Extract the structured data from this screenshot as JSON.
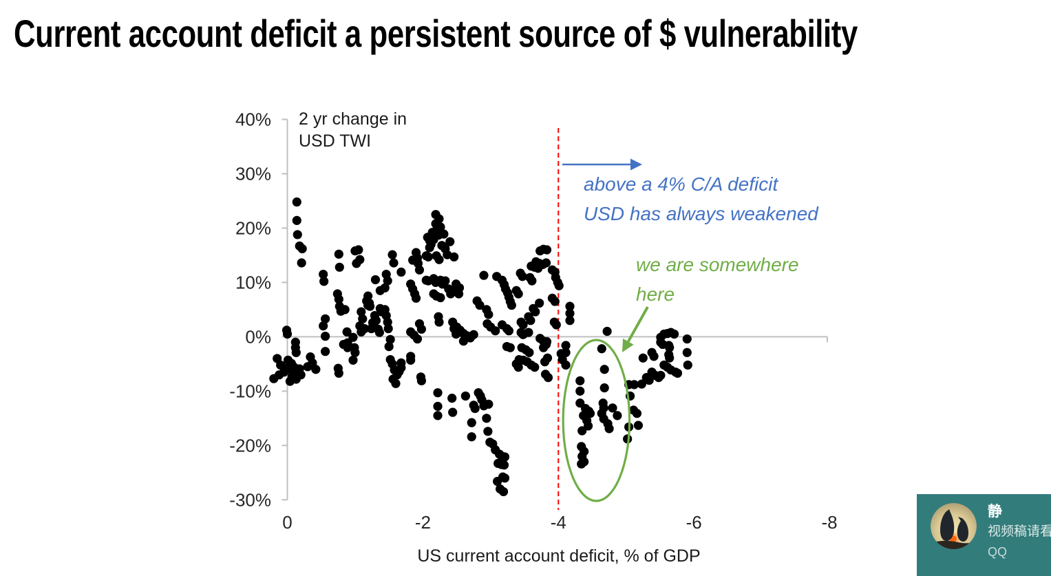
{
  "title": "Current account deficit a persistent source of $ vulnerability",
  "chart_data": {
    "type": "scatter",
    "xlabel": "US current account deficit, % of GDP",
    "ylabel_note": {
      "line1": "2 yr change in",
      "line2": "USD TWI"
    },
    "xlim": [
      0,
      -8
    ],
    "ylim": [
      40,
      -30
    ],
    "x_ticks": [
      {
        "value": 0,
        "label": "0"
      },
      {
        "value": -2,
        "label": "-2"
      },
      {
        "value": -4,
        "label": "-4"
      },
      {
        "value": -6,
        "label": "-6"
      },
      {
        "value": -8,
        "label": "-8"
      }
    ],
    "y_ticks": [
      {
        "value": 40,
        "label": "40%"
      },
      {
        "value": 30,
        "label": "30%"
      },
      {
        "value": 20,
        "label": "20%"
      },
      {
        "value": 10,
        "label": "10%"
      },
      {
        "value": 0,
        "label": "0%"
      },
      {
        "value": -10,
        "label": "-10%"
      },
      {
        "value": -20,
        "label": "-20%"
      },
      {
        "value": -30,
        "label": "-30%"
      }
    ],
    "axis_color": "#bfbfbf",
    "tick_label_color": "#262626",
    "marker_color": "#000000",
    "marker_radius": 6.6,
    "reference_line": {
      "x": -4,
      "color": "#fb1414",
      "style": "dashed"
    },
    "highlight_ellipse": {
      "cx": -4.56,
      "cy": -15.4,
      "rx_units": 0.49,
      "ry_pct": 14.8,
      "color": "#70ad47"
    },
    "annotations": {
      "blue": {
        "line1": "above a 4% C/A deficit",
        "line2": "USD has always weakened",
        "color": "#4472c4"
      },
      "green": {
        "line1": "we are somewhere",
        "line2": "here",
        "color": "#70ad47"
      }
    },
    "points": [
      [
        0.2,
        -7.7
      ],
      [
        0.15,
        -4.0
      ],
      [
        0.1,
        -5.2
      ],
      [
        0.05,
        -6.5
      ],
      [
        0.12,
        -7.0
      ],
      [
        0.02,
        -5.8
      ],
      [
        0.0,
        0.5
      ],
      [
        0.01,
        1.2
      ],
      [
        -0.14,
        24.8
      ],
      [
        -0.14,
        21.4
      ],
      [
        -0.15,
        18.8
      ],
      [
        -0.18,
        16.7
      ],
      [
        -0.22,
        16.2
      ],
      [
        -0.21,
        13.6
      ],
      [
        -0.12,
        -1.0
      ],
      [
        -0.12,
        -2.0
      ],
      [
        -0.13,
        -2.9
      ],
      [
        -0.01,
        -4.3
      ],
      [
        -0.06,
        -4.9
      ],
      [
        -0.1,
        -5.6
      ],
      [
        -0.16,
        -6.2
      ],
      [
        -0.08,
        -6.5
      ],
      [
        -0.18,
        -5.9
      ],
      [
        -0.07,
        -7.3
      ],
      [
        -0.13,
        -7.8
      ],
      [
        -0.04,
        -8.2
      ],
      [
        -0.2,
        -7.0
      ],
      [
        -0.34,
        -3.7
      ],
      [
        -0.37,
        -4.8
      ],
      [
        -0.42,
        -6.0
      ],
      [
        -0.3,
        -5.5
      ],
      [
        -0.56,
        0.1
      ],
      [
        -0.56,
        -2.7
      ],
      [
        -0.56,
        3.3
      ],
      [
        -0.53,
        2.0
      ],
      [
        -0.75,
        -5.8
      ],
      [
        -0.76,
        -6.7
      ],
      [
        -0.53,
        11.5
      ],
      [
        -0.54,
        10.2
      ],
      [
        -0.76,
        15.2
      ],
      [
        -0.77,
        12.8
      ],
      [
        -0.74,
        7.9
      ],
      [
        -0.76,
        6.9
      ],
      [
        -0.77,
        5.6
      ],
      [
        -0.79,
        4.7
      ],
      [
        -0.85,
        5.0
      ],
      [
        -0.83,
        -1.4
      ],
      [
        -0.89,
        -2.0
      ],
      [
        -1.0,
        15.8
      ],
      [
        -1.02,
        13.5
      ],
      [
        -1.05,
        16.0
      ],
      [
        -1.07,
        14.2
      ],
      [
        -0.88,
        0.9
      ],
      [
        -0.89,
        -1.1
      ],
      [
        -0.97,
        -0.1
      ],
      [
        -0.99,
        -2.0
      ],
      [
        -1.0,
        -2.9
      ],
      [
        -0.97,
        -4.3
      ],
      [
        -1.09,
        4.6
      ],
      [
        -1.11,
        3.3
      ],
      [
        -1.07,
        2.0
      ],
      [
        -1.09,
        0.9
      ],
      [
        -1.19,
        7.5
      ],
      [
        -1.21,
        6.2
      ],
      [
        -1.22,
        5.6
      ],
      [
        -1.37,
        8.5
      ],
      [
        -1.17,
        6.6
      ],
      [
        -1.19,
        5.8
      ],
      [
        -1.14,
        1.5
      ],
      [
        -1.24,
        1.5
      ],
      [
        -1.26,
        2.6
      ],
      [
        -1.29,
        3.9
      ],
      [
        -1.31,
        3.0
      ],
      [
        -1.34,
        1.4
      ],
      [
        -1.36,
        0.8
      ],
      [
        -1.37,
        5.2
      ],
      [
        -1.39,
        4.6
      ],
      [
        -1.44,
        5.0
      ],
      [
        -1.46,
        3.9
      ],
      [
        -1.48,
        2.7
      ],
      [
        -1.49,
        1.5
      ],
      [
        -1.3,
        10.5
      ],
      [
        -1.44,
        9.0
      ],
      [
        -1.46,
        11.5
      ],
      [
        -1.48,
        10.3
      ],
      [
        -1.55,
        15.1
      ],
      [
        -1.57,
        13.6
      ],
      [
        -1.68,
        11.9
      ],
      [
        -1.52,
        -0.5
      ],
      [
        -1.5,
        -1.8
      ],
      [
        -1.52,
        -4.2
      ],
      [
        -1.55,
        -5.0
      ],
      [
        -1.58,
        -6.1
      ],
      [
        -1.62,
        -7.0
      ],
      [
        -1.56,
        -7.8
      ],
      [
        -1.6,
        -8.6
      ],
      [
        -1.65,
        -6.4
      ],
      [
        -1.68,
        -4.8
      ],
      [
        -1.68,
        -5.7
      ],
      [
        -1.82,
        -3.6
      ],
      [
        -1.82,
        -4.3
      ],
      [
        -1.97,
        -7.4
      ],
      [
        -1.98,
        -8.1
      ],
      [
        -1.82,
        9.7
      ],
      [
        -1.85,
        8.8
      ],
      [
        -1.88,
        7.9
      ],
      [
        -1.9,
        7.1
      ],
      [
        -1.85,
        14.1
      ],
      [
        -1.9,
        15.5
      ],
      [
        -1.92,
        14.5
      ],
      [
        -1.93,
        13.5
      ],
      [
        -1.95,
        12.3
      ],
      [
        -1.82,
        0.9
      ],
      [
        -1.87,
        0.3
      ],
      [
        -1.92,
        -0.4
      ],
      [
        -1.95,
        2.4
      ],
      [
        -1.98,
        1.4
      ],
      [
        -2.05,
        14.9
      ],
      [
        -2.08,
        14.7
      ],
      [
        -2.2,
        14.9
      ],
      [
        -2.24,
        14.2
      ],
      [
        -2.07,
        18.3
      ],
      [
        -2.1,
        17.7
      ],
      [
        -2.12,
        17.0
      ],
      [
        -2.16,
        17.9
      ],
      [
        -2.2,
        19.6
      ],
      [
        -2.23,
        18.7
      ],
      [
        -2.19,
        22.5
      ],
      [
        -2.24,
        21.7
      ],
      [
        -2.19,
        20.8
      ],
      [
        -2.26,
        20.2
      ],
      [
        -2.14,
        19.2
      ],
      [
        -2.31,
        18.9
      ],
      [
        -2.1,
        16.4
      ],
      [
        -2.28,
        16.8
      ],
      [
        -2.33,
        16.2
      ],
      [
        -2.05,
        10.4
      ],
      [
        -2.08,
        10.3
      ],
      [
        -2.16,
        10.7
      ],
      [
        -2.19,
        10.0
      ],
      [
        -2.26,
        10.4
      ],
      [
        -2.29,
        9.7
      ],
      [
        -2.33,
        10.3
      ],
      [
        -2.16,
        7.9
      ],
      [
        -2.2,
        7.5
      ],
      [
        -2.26,
        7.2
      ],
      [
        -2.38,
        8.8
      ],
      [
        -2.41,
        7.9
      ],
      [
        -2.46,
        8.4
      ],
      [
        -2.36,
        15.1
      ],
      [
        -2.46,
        14.7
      ],
      [
        -2.4,
        17.5
      ],
      [
        -2.49,
        9.7
      ],
      [
        -2.54,
        9.0
      ],
      [
        -2.53,
        7.9
      ],
      [
        -2.44,
        2.7
      ],
      [
        -2.46,
        1.5
      ],
      [
        -2.49,
        0.5
      ],
      [
        -2.23,
        3.7
      ],
      [
        -2.24,
        2.7
      ],
      [
        -2.5,
        1.8
      ],
      [
        -2.55,
        1.2
      ],
      [
        -2.6,
        0.6
      ],
      [
        -2.65,
        0.2
      ],
      [
        -2.7,
        -0.2
      ],
      [
        -2.75,
        0.4
      ],
      [
        -2.6,
        -0.8
      ],
      [
        -2.8,
        6.6
      ],
      [
        -2.84,
        5.8
      ],
      [
        -2.94,
        5.0
      ],
      [
        -2.97,
        4.1
      ],
      [
        -2.9,
        11.3
      ],
      [
        -3.09,
        11.1
      ],
      [
        -2.95,
        2.4
      ],
      [
        -3.0,
        1.8
      ],
      [
        -3.07,
        1.1
      ],
      [
        -3.17,
        2.2
      ],
      [
        -3.24,
        1.5
      ],
      [
        -3.27,
        1.1
      ],
      [
        -3.17,
        10.4
      ],
      [
        -3.2,
        9.6
      ],
      [
        -3.22,
        8.8
      ],
      [
        -3.25,
        8.1
      ],
      [
        -3.27,
        7.3
      ],
      [
        -3.29,
        6.5
      ],
      [
        -3.31,
        5.8
      ],
      [
        -3.38,
        8.5
      ],
      [
        -3.41,
        7.9
      ],
      [
        -3.44,
        11.7
      ],
      [
        -3.47,
        11.1
      ],
      [
        -3.58,
        10.9
      ],
      [
        -3.61,
        10.3
      ],
      [
        -3.6,
        13.0
      ],
      [
        -3.65,
        12.8
      ],
      [
        -3.7,
        12.6
      ],
      [
        -3.73,
        15.8
      ],
      [
        -3.78,
        16.1
      ],
      [
        -3.83,
        16.0
      ],
      [
        -3.67,
        13.8
      ],
      [
        -3.72,
        13.5
      ],
      [
        -3.77,
        13.3
      ],
      [
        -3.82,
        13.6
      ],
      [
        -3.91,
        12.3
      ],
      [
        -3.95,
        11.9
      ],
      [
        -3.96,
        10.9
      ],
      [
        -3.99,
        10.0
      ],
      [
        -4.01,
        9.4
      ],
      [
        -3.91,
        7.1
      ],
      [
        -3.95,
        6.5
      ],
      [
        -3.63,
        5.2
      ],
      [
        -3.66,
        4.6
      ],
      [
        -3.72,
        6.2
      ],
      [
        -3.56,
        3.7
      ],
      [
        -3.59,
        3.0
      ],
      [
        -3.45,
        2.7
      ],
      [
        -3.48,
        2.2
      ],
      [
        -3.94,
        2.7
      ],
      [
        -3.97,
        2.2
      ],
      [
        -3.45,
        0.8
      ],
      [
        -3.48,
        0.4
      ],
      [
        -3.56,
        0.8
      ],
      [
        -3.73,
        -0.3
      ],
      [
        -3.83,
        -0.9
      ],
      [
        -3.24,
        -1.8
      ],
      [
        -3.29,
        -2.0
      ],
      [
        -3.42,
        -4.2
      ],
      [
        -3.48,
        -4.3
      ],
      [
        -3.38,
        -5.0
      ],
      [
        -3.41,
        -5.6
      ],
      [
        -3.46,
        -2.0
      ],
      [
        -3.52,
        -2.4
      ],
      [
        -3.57,
        -2.9
      ],
      [
        -3.54,
        -4.6
      ],
      [
        -3.6,
        -5.2
      ],
      [
        -3.65,
        -5.6
      ],
      [
        -3.78,
        -0.8
      ],
      [
        -3.82,
        -1.4
      ],
      [
        -3.78,
        -2.0
      ],
      [
        -3.84,
        -3.9
      ],
      [
        -3.8,
        -4.6
      ],
      [
        -3.81,
        -6.9
      ],
      [
        -3.85,
        -7.5
      ],
      [
        -4.04,
        -3.1
      ],
      [
        -4.06,
        -4.2
      ],
      [
        -2.22,
        -10.3
      ],
      [
        -2.22,
        -12.8
      ],
      [
        -2.22,
        -14.5
      ],
      [
        -2.43,
        -11.3
      ],
      [
        -2.44,
        -13.9
      ],
      [
        -2.63,
        -10.9
      ],
      [
        -2.72,
        -15.8
      ],
      [
        -2.72,
        -18.4
      ],
      [
        -2.75,
        -12.6
      ],
      [
        -2.77,
        -13.2
      ],
      [
        -2.82,
        -10.3
      ],
      [
        -2.85,
        -10.9
      ],
      [
        -2.87,
        -11.6
      ],
      [
        -2.9,
        -12.7
      ],
      [
        -2.97,
        -12.4
      ],
      [
        -2.94,
        -15.0
      ],
      [
        -2.96,
        -17.4
      ],
      [
        -2.99,
        -19.4
      ],
      [
        -3.03,
        -19.7
      ],
      [
        -3.07,
        -20.8
      ],
      [
        -3.13,
        -21.6
      ],
      [
        -3.17,
        -22.0
      ],
      [
        -3.21,
        -22.1
      ],
      [
        -3.11,
        -23.3
      ],
      [
        -3.16,
        -23.5
      ],
      [
        -3.2,
        -23.6
      ],
      [
        -3.1,
        -26.6
      ],
      [
        -3.18,
        -25.8
      ],
      [
        -3.21,
        -26.0
      ],
      [
        -3.14,
        -28.0
      ],
      [
        -3.19,
        -28.5
      ],
      [
        -4.17,
        5.6
      ],
      [
        -4.17,
        4.3
      ],
      [
        -4.17,
        3.0
      ],
      [
        -4.11,
        -1.6
      ],
      [
        -4.11,
        -2.9
      ],
      [
        -4.11,
        -5.2
      ],
      [
        -4.72,
        1.0
      ],
      [
        -4.64,
        -2.2
      ],
      [
        -4.68,
        -6.0
      ],
      [
        -4.68,
        -9.4
      ],
      [
        -4.32,
        -8.1
      ],
      [
        -4.32,
        -10.0
      ],
      [
        -4.32,
        -12.2
      ],
      [
        -4.4,
        -13.2
      ],
      [
        -4.45,
        -13.7
      ],
      [
        -4.47,
        -14.1
      ],
      [
        -4.42,
        -15.4
      ],
      [
        -4.37,
        -14.5
      ],
      [
        -4.44,
        -16.4
      ],
      [
        -4.35,
        -17.3
      ],
      [
        -4.34,
        -20.2
      ],
      [
        -4.38,
        -21.1
      ],
      [
        -4.35,
        -22.0
      ],
      [
        -4.38,
        -23.0
      ],
      [
        -4.34,
        -23.4
      ],
      [
        -4.66,
        -12.2
      ],
      [
        -4.67,
        -13.1
      ],
      [
        -4.64,
        -14.1
      ],
      [
        -4.67,
        -15.1
      ],
      [
        -4.73,
        -16.0
      ],
      [
        -4.75,
        -16.9
      ],
      [
        -4.8,
        -13.1
      ],
      [
        -4.87,
        -14.5
      ],
      [
        -5.04,
        -8.8
      ],
      [
        -5.06,
        -10.9
      ],
      [
        -5.11,
        -13.5
      ],
      [
        -5.16,
        -14.1
      ],
      [
        -5.04,
        -16.6
      ],
      [
        -5.18,
        -16.3
      ],
      [
        -5.02,
        -18.8
      ],
      [
        -5.12,
        -8.8
      ],
      [
        -5.23,
        -8.7
      ],
      [
        -5.25,
        -3.9
      ],
      [
        -5.38,
        -2.9
      ],
      [
        -5.41,
        -3.6
      ],
      [
        -5.3,
        -7.5
      ],
      [
        -5.34,
        -8.0
      ],
      [
        -5.38,
        -6.5
      ],
      [
        -5.43,
        -7.1
      ],
      [
        -5.48,
        -7.5
      ],
      [
        -5.51,
        -7.1
      ],
      [
        -5.56,
        -5.2
      ],
      [
        -5.51,
        -0.1
      ],
      [
        -5.56,
        0.5
      ],
      [
        -5.61,
        0.6
      ],
      [
        -5.66,
        0.8
      ],
      [
        -5.71,
        0.5
      ],
      [
        -5.51,
        -1.0
      ],
      [
        -5.54,
        -1.4
      ],
      [
        -5.63,
        -1.6
      ],
      [
        -5.64,
        -2.0
      ],
      [
        -5.63,
        -3.3
      ],
      [
        -5.64,
        -3.9
      ],
      [
        -5.61,
        -5.6
      ],
      [
        -5.66,
        -6.1
      ],
      [
        -5.73,
        -6.5
      ],
      [
        -5.76,
        -6.7
      ],
      [
        -5.9,
        -0.4
      ],
      [
        -5.9,
        -2.9
      ],
      [
        -5.91,
        -5.2
      ]
    ]
  },
  "widget": {
    "name": "静",
    "message": "视频稿请看",
    "app": "QQ",
    "bg_color": "#337c7c",
    "avatar": "penguins-sunset"
  }
}
